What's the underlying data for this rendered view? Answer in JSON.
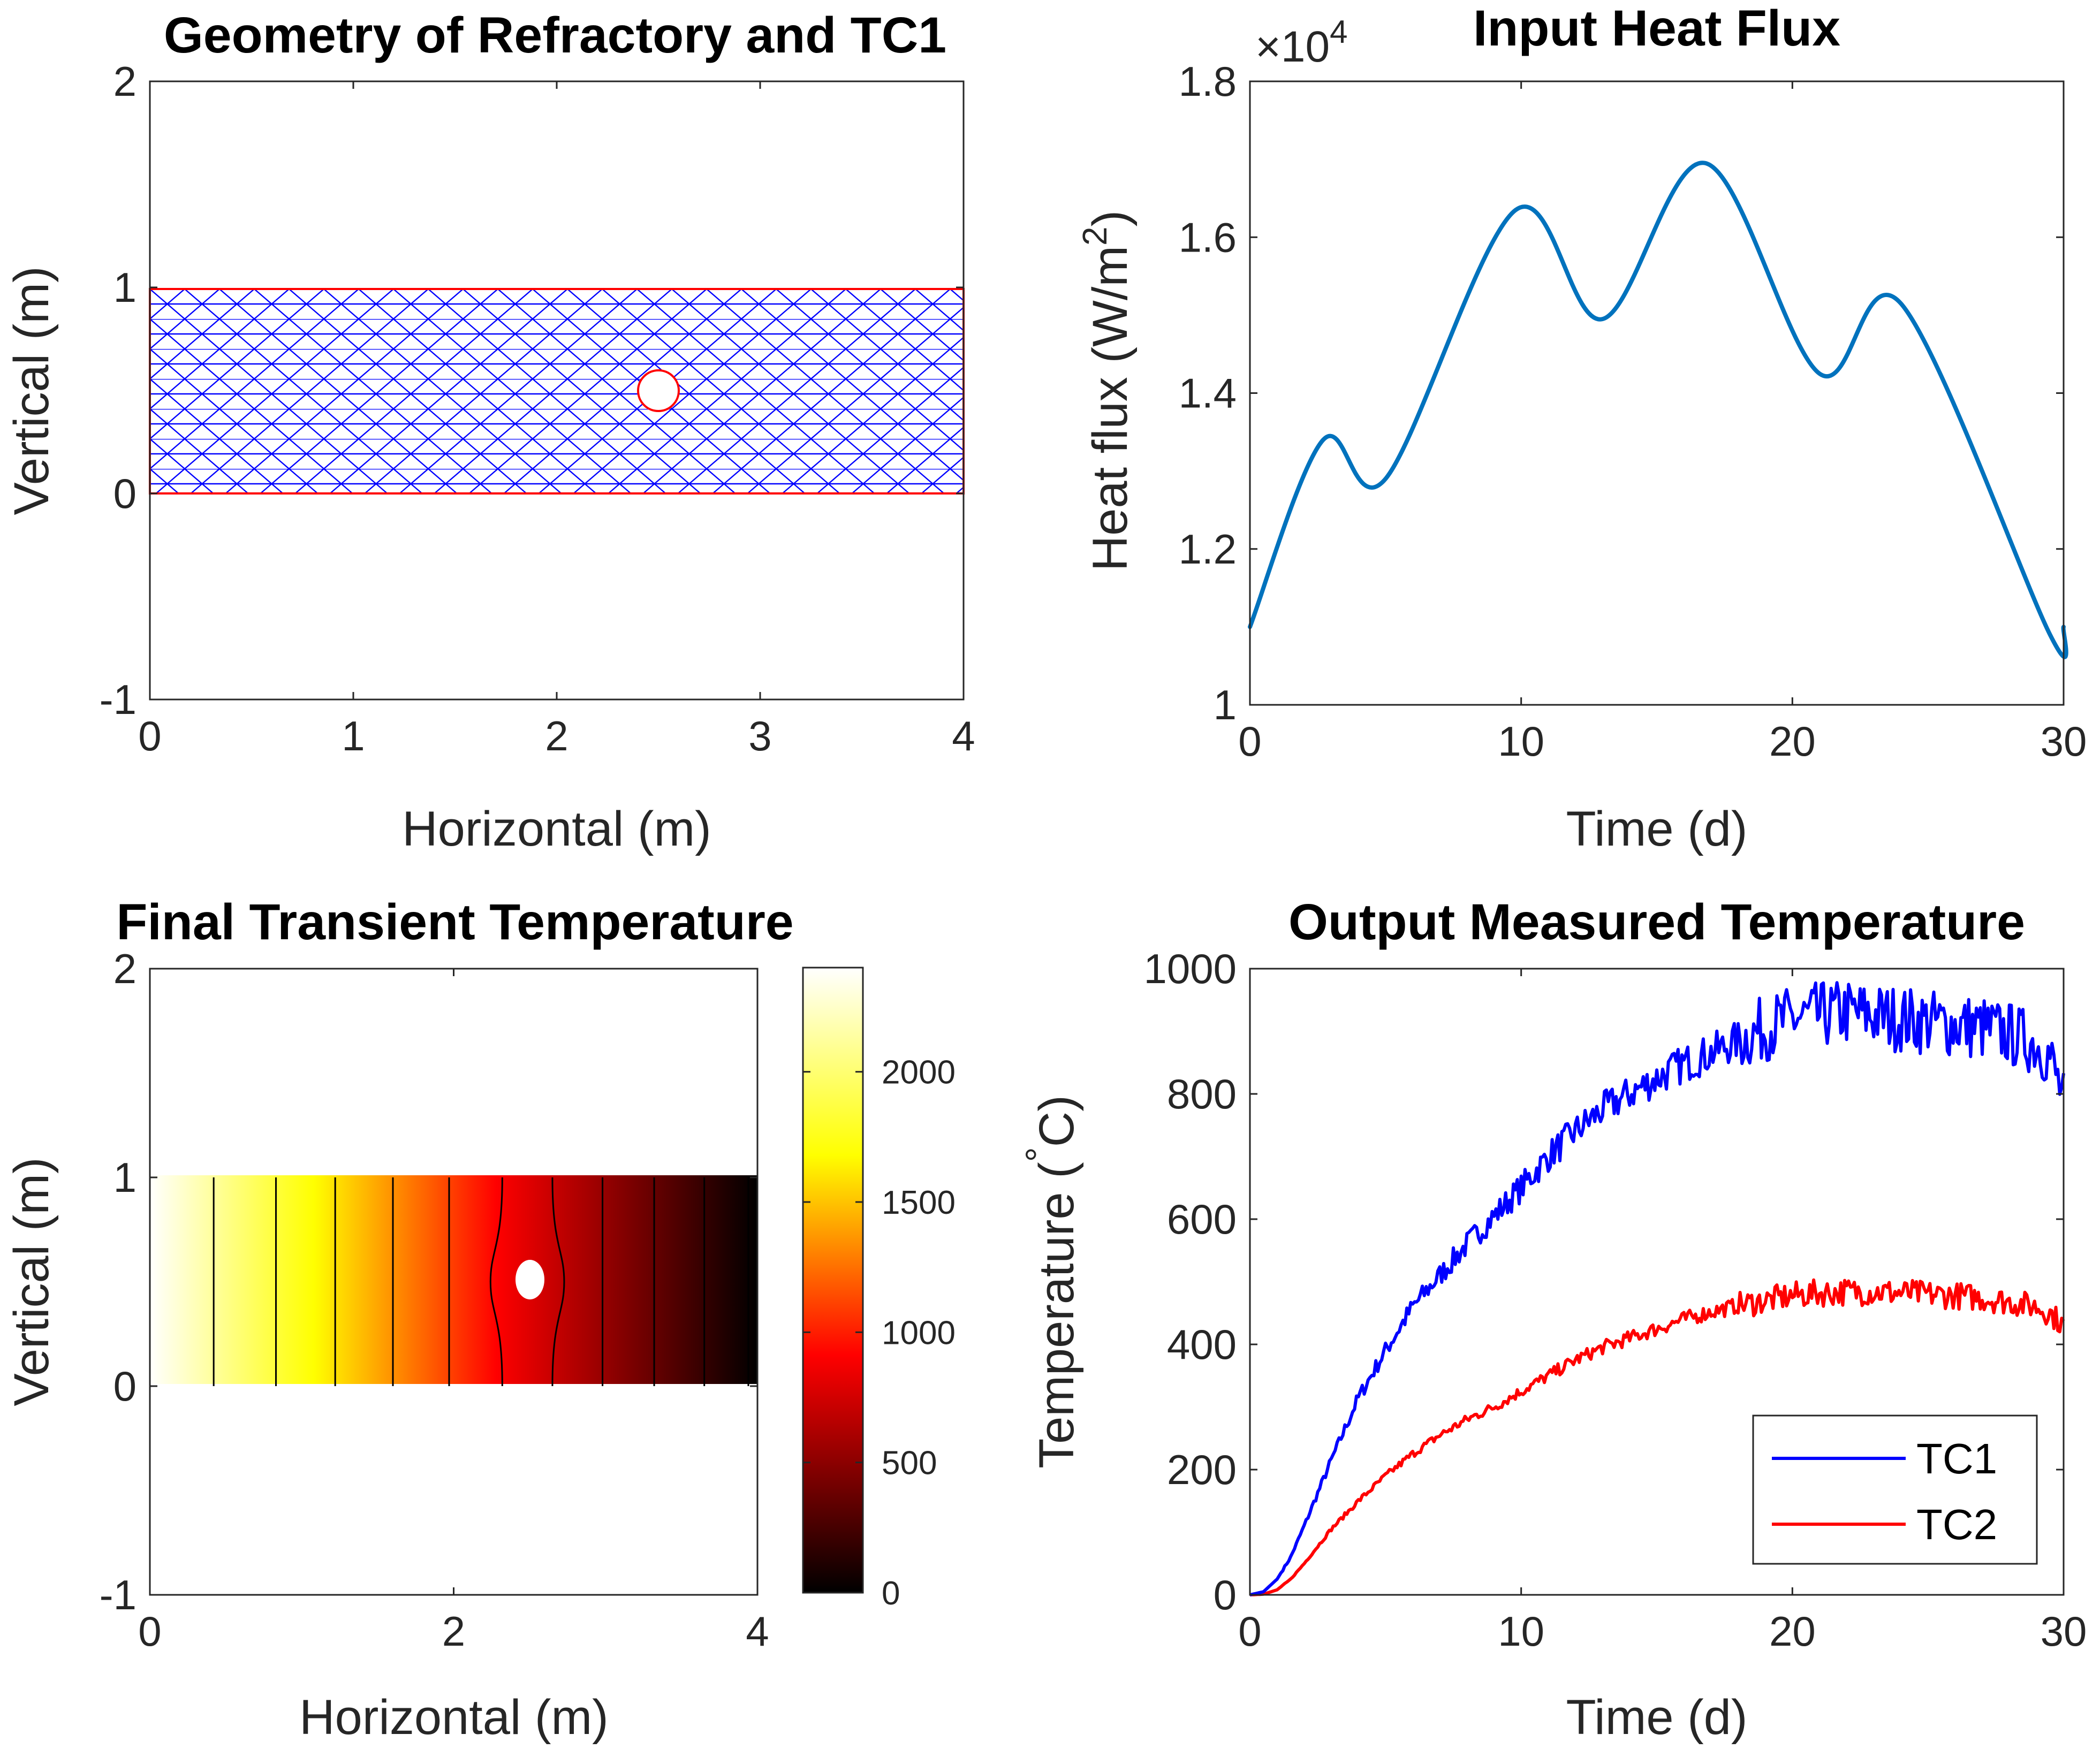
{
  "chart_data": [
    {
      "type": "mesh",
      "title": "Geometry of Refractory and TC1",
      "xlabel": "Horizontal (m)",
      "ylabel": "Vertical (m)",
      "xlim": [
        0,
        4
      ],
      "ylim": [
        -1,
        2
      ],
      "xticks": [
        0,
        1,
        2,
        3,
        4
      ],
      "yticks": [
        -1,
        0,
        1,
        2
      ],
      "rectangle": {
        "x": [
          0,
          4
        ],
        "y": [
          0,
          1
        ]
      },
      "hole": {
        "cx": 2.5,
        "cy": 0.5,
        "r": 0.1
      },
      "mesh_color": "#0000ff",
      "edge_color": "#ff0000"
    },
    {
      "type": "line",
      "title": "Input Heat Flux",
      "xlabel": "Time (d)",
      "ylabel_main": "Heat flux (W/m",
      "ylabel_sup": "2",
      "ylabel_end": ")",
      "exponent_base": "×10",
      "exponent_power": "4",
      "xlim": [
        0,
        30
      ],
      "ylim": [
        10000,
        18000
      ],
      "xticks": [
        0,
        10,
        20,
        30
      ],
      "yticks": [
        10000,
        12000,
        14000,
        16000,
        18000
      ],
      "ytick_labels": [
        "1",
        "1.2",
        "1.4",
        "1.6",
        "1.8"
      ],
      "color": "#0072bd",
      "x": [
        0,
        2.7,
        5,
        9.8,
        13,
        16.8,
        21,
        24,
        29.5,
        30
      ],
      "y": [
        11000,
        13400,
        12900,
        16350,
        14950,
        16950,
        14250,
        15150,
        10900,
        11000
      ]
    },
    {
      "type": "heatmap",
      "title": "Final Transient Temperature",
      "xlabel": "Horizontal (m)",
      "ylabel": "Vertical (m)",
      "xlim": [
        0,
        4
      ],
      "ylim": [
        -1,
        2
      ],
      "xticks": [
        0,
        2,
        4
      ],
      "yticks": [
        -1,
        0,
        1,
        2
      ],
      "colorbar_ticks": [
        0,
        500,
        1000,
        1500,
        2000
      ],
      "colorbar_range": [
        0,
        2400
      ],
      "colormap": "hot",
      "hole": {
        "cx": 2.5,
        "cy": 0.5,
        "rx": 0.09,
        "ry": 0.09
      },
      "temperature_left": 2400,
      "temperature_right": 0,
      "contour_x": [
        0.42,
        0.83,
        1.22,
        1.6,
        1.97,
        2.32,
        2.65,
        2.98,
        3.32,
        3.65,
        3.94
      ]
    },
    {
      "type": "line",
      "title": "Output Measured Temperature",
      "xlabel": "Time (d)",
      "ylabel_main": "Temperature (",
      "ylabel_sup": "°",
      "ylabel_end": "C)",
      "xlim": [
        0,
        30
      ],
      "ylim": [
        0,
        1000
      ],
      "xticks": [
        0,
        10,
        20,
        30
      ],
      "yticks": [
        0,
        200,
        400,
        600,
        800,
        1000
      ],
      "legend_position": "bottom-right",
      "series": [
        {
          "name": "TC1",
          "color": "#0000ff",
          "x": [
            0,
            0.5,
            1,
            1.5,
            2,
            3,
            4,
            5,
            6,
            7,
            8,
            9,
            10,
            11,
            12,
            13,
            14,
            15,
            16,
            17,
            18,
            19,
            20,
            21,
            22,
            23,
            24,
            25,
            26,
            27,
            28,
            29,
            29.5,
            30
          ],
          "y": [
            0,
            5,
            25,
            60,
            110,
            215,
            315,
            390,
            460,
            510,
            560,
            605,
            650,
            700,
            740,
            775,
            800,
            825,
            848,
            865,
            885,
            905,
            920,
            925,
            930,
            925,
            920,
            915,
            910,
            905,
            895,
            880,
            860,
            790
          ]
        },
        {
          "name": "TC2",
          "color": "#ff0000",
          "x": [
            0,
            0.5,
            1,
            1.5,
            2,
            3,
            4,
            5,
            6,
            7,
            8,
            9,
            10,
            11,
            12,
            13,
            14,
            15,
            16,
            17,
            18,
            19,
            20,
            21,
            22,
            23,
            24,
            25,
            26,
            27,
            28,
            29,
            29.5,
            30
          ],
          "y": [
            0,
            1,
            8,
            25,
            50,
            105,
            150,
            190,
            225,
            255,
            280,
            300,
            325,
            350,
            375,
            395,
            410,
            425,
            440,
            452,
            462,
            470,
            478,
            482,
            484,
            484,
            482,
            480,
            478,
            474,
            468,
            460,
            450,
            430
          ]
        }
      ]
    }
  ]
}
